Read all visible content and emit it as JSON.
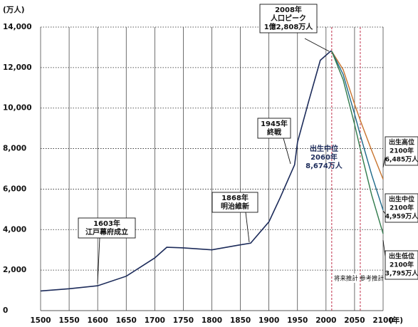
{
  "chart_data": {
    "type": "line",
    "y_unit": "(万人)",
    "x_unit": "(年)",
    "xlim": [
      1500,
      2100
    ],
    "xticks": [
      1500,
      1550,
      1600,
      1650,
      1700,
      1750,
      1800,
      1850,
      1900,
      1950,
      2000,
      2050,
      2100
    ],
    "ylim": [
      0,
      14000
    ],
    "yticks": [
      0,
      {
        "value": 2000,
        "label": "2,000"
      },
      {
        "value": 4000,
        "label": "4,000"
      },
      {
        "value": 6000,
        "label": "6,000"
      },
      {
        "value": 8000,
        "label": "8,000"
      },
      {
        "value": 10000,
        "label": "10,000"
      },
      {
        "value": 12000,
        "label": "12,000"
      },
      {
        "value": 14000,
        "label": "14,000"
      }
    ],
    "grid": true,
    "series": [
      {
        "color": "#1c2b5a",
        "x": [
          1500,
          1550,
          1600,
          1650,
          1700,
          1721,
          1750,
          1800,
          1846,
          1868,
          1900,
          1920,
          1945,
          1950,
          1970,
          1990,
          2008,
          2010
        ],
        "values": [
          970,
          1080,
          1227,
          1700,
          2600,
          3128,
          3100,
          3000,
          3230,
          3330,
          4385,
          5596,
          7199,
          8320,
          10372,
          12361,
          12808,
          12806
        ]
      },
      {
        "color": "#c8742e",
        "x": [
          2010,
          2030,
          2050,
          2060,
          2080,
          2100
        ],
        "values": [
          12806,
          11900,
          10200,
          9400,
          7900,
          6485
        ]
      },
      {
        "color": "#1f6a8a",
        "x": [
          2010,
          2030,
          2050,
          2060,
          2080,
          2100
        ],
        "values": [
          12806,
          11662,
          9708,
          8674,
          6700,
          4959
        ]
      },
      {
        "color": "#2f7a4a",
        "x": [
          2010,
          2030,
          2050,
          2060,
          2080,
          2100
        ],
        "values": [
          12806,
          11400,
          9200,
          8000,
          5700,
          3795
        ]
      }
    ],
    "periods": [
      {
        "label": "将来推計",
        "from": 2010,
        "to": 2060
      },
      {
        "label": "参考推計",
        "from": 2060,
        "to": 2100
      }
    ],
    "annotations": [
      {
        "lines": [
          "1603年",
          "江戸幕府成立"
        ]
      },
      {
        "lines": [
          "1868年",
          "明治維新"
        ]
      },
      {
        "lines": [
          "1945年",
          "終戦"
        ]
      },
      {
        "lines": [
          "2008年",
          "人口ピーク",
          "1億2,808万人"
        ]
      },
      {
        "lines": [
          "出生中位",
          "2060年",
          "8,674万人"
        ]
      },
      {
        "lines": [
          "出生高位",
          "2100年",
          "6,485万人"
        ]
      },
      {
        "lines": [
          "出生中位",
          "2100年",
          "4,959万人"
        ]
      },
      {
        "lines": [
          "出生低位",
          "2100年",
          "3,795万人"
        ]
      }
    ]
  }
}
